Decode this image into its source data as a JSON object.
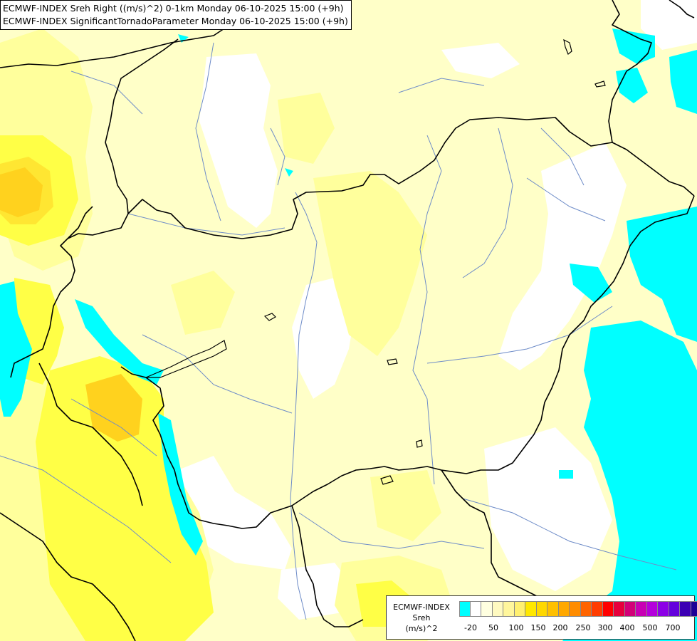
{
  "header": {
    "line1": "ECMWF-INDEX Sreh Right ((m/s)^2) 0-1km Monday 06-10-2025 15:00 (+9h)",
    "line2": "ECMWF-INDEX SignificantTornadoParameter Monday 06-10-2025 15:00 (+9h)"
  },
  "legend": {
    "line1": "ECMWF-INDEX",
    "line2": "Sreh",
    "line3": "(m/s)^2",
    "colors": [
      "#00ffff",
      "#ffffff",
      "#ffffe0",
      "#fffac0",
      "#fff69c",
      "#fff070",
      "#ffe800",
      "#ffd800",
      "#ffc000",
      "#ffa800",
      "#ff8c00",
      "#ff6400",
      "#ff3c00",
      "#ff0000",
      "#e6003c",
      "#d20078",
      "#c800b4",
      "#b400dc",
      "#8c00e6",
      "#6400dc",
      "#3c00b4",
      "#1e0096"
    ],
    "tick_labels": [
      "-20",
      "50",
      "100",
      "150",
      "200",
      "250",
      "300",
      "400",
      "500",
      "700"
    ]
  },
  "map": {
    "colors": {
      "white": "#ffffff",
      "pale": "#ffffc8",
      "light": "#ffff9c",
      "yellow": "#ffff46",
      "gold": "#ffe632",
      "amber": "#ffd21e",
      "cyan": "#00ffff",
      "border": "#000000",
      "river": "#6e8cc8"
    }
  }
}
